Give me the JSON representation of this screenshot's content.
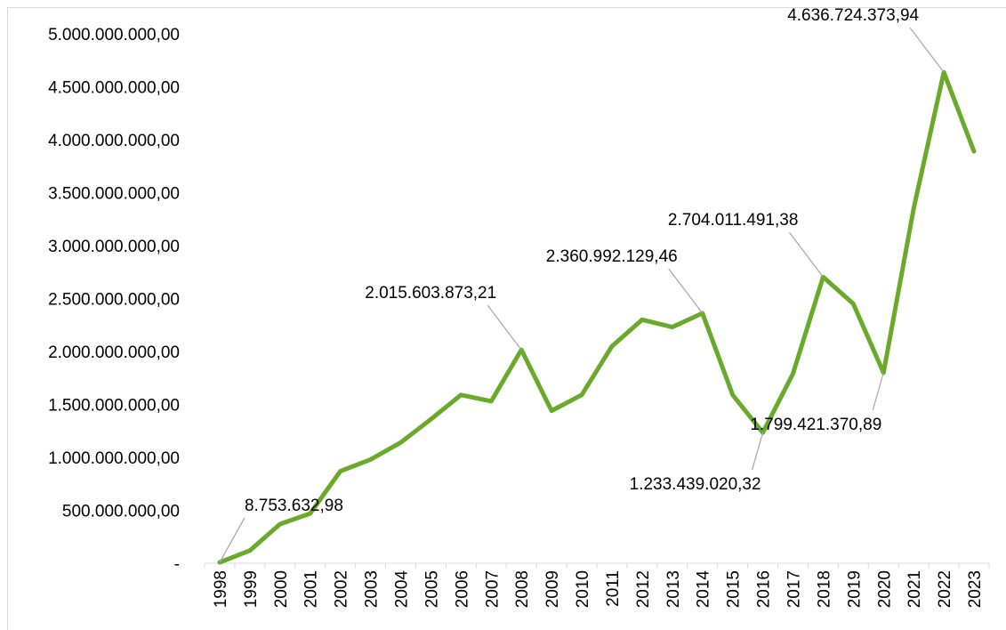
{
  "chart_data": {
    "type": "line",
    "title": "",
    "xlabel": "",
    "ylabel": "",
    "ylim": [
      0,
      5000000000
    ],
    "y_ticks": [
      {
        "value": 0,
        "label": "-"
      },
      {
        "value": 500000000,
        "label": "500.000.000,00"
      },
      {
        "value": 1000000000,
        "label": "1.000.000.000,00"
      },
      {
        "value": 1500000000,
        "label": "1.500.000.000,00"
      },
      {
        "value": 2000000000,
        "label": "2.000.000.000,00"
      },
      {
        "value": 2500000000,
        "label": "2.500.000.000,00"
      },
      {
        "value": 3000000000,
        "label": "3.000.000.000,00"
      },
      {
        "value": 3500000000,
        "label": "3.500.000.000,00"
      },
      {
        "value": 4000000000,
        "label": "4.000.000.000,00"
      },
      {
        "value": 4500000000,
        "label": "4.500.000.000,00"
      },
      {
        "value": 5000000000,
        "label": "5.000.000.000,00"
      }
    ],
    "categories": [
      "1998",
      "1999",
      "2000",
      "2001",
      "2002",
      "2003",
      "2004",
      "2005",
      "2006",
      "2007",
      "2008",
      "2009",
      "2010",
      "2011",
      "2012",
      "2013",
      "2014",
      "2015",
      "2016",
      "2017",
      "2018",
      "2019",
      "2020",
      "2021",
      "2022",
      "2023"
    ],
    "series": [
      {
        "color": "#6aaa2a",
        "values": [
          8753632.98,
          120000000,
          370000000,
          470000000,
          870000000,
          980000000,
          1140000000,
          1360000000,
          1590000000,
          1530000000,
          2015603873.21,
          1440000000,
          1590000000,
          2050000000,
          2300000000,
          2230000000,
          2360992129.46,
          1590000000,
          1233439020.32,
          1790000000,
          2704011491.38,
          2450000000,
          1799421370.89,
          3350000000,
          4636724373.94,
          3890000000
        ]
      }
    ],
    "annotations": [
      {
        "category": "1998",
        "label": "8.753.632,98",
        "position": "above-right"
      },
      {
        "category": "2008",
        "label": "2.015.603.873,21",
        "position": "above-left"
      },
      {
        "category": "2014",
        "label": "2.360.992.129,46",
        "position": "above-left"
      },
      {
        "category": "2016",
        "label": "1.233.439.020,32",
        "position": "below-left"
      },
      {
        "category": "2018",
        "label": "2.704.011.491,38",
        "position": "above-left"
      },
      {
        "category": "2020",
        "label": "1.799.421.370,89",
        "position": "below-left"
      },
      {
        "category": "2022",
        "label": "4.636.724.373,94",
        "position": "above-left"
      }
    ],
    "grid": false,
    "legend": "none"
  }
}
